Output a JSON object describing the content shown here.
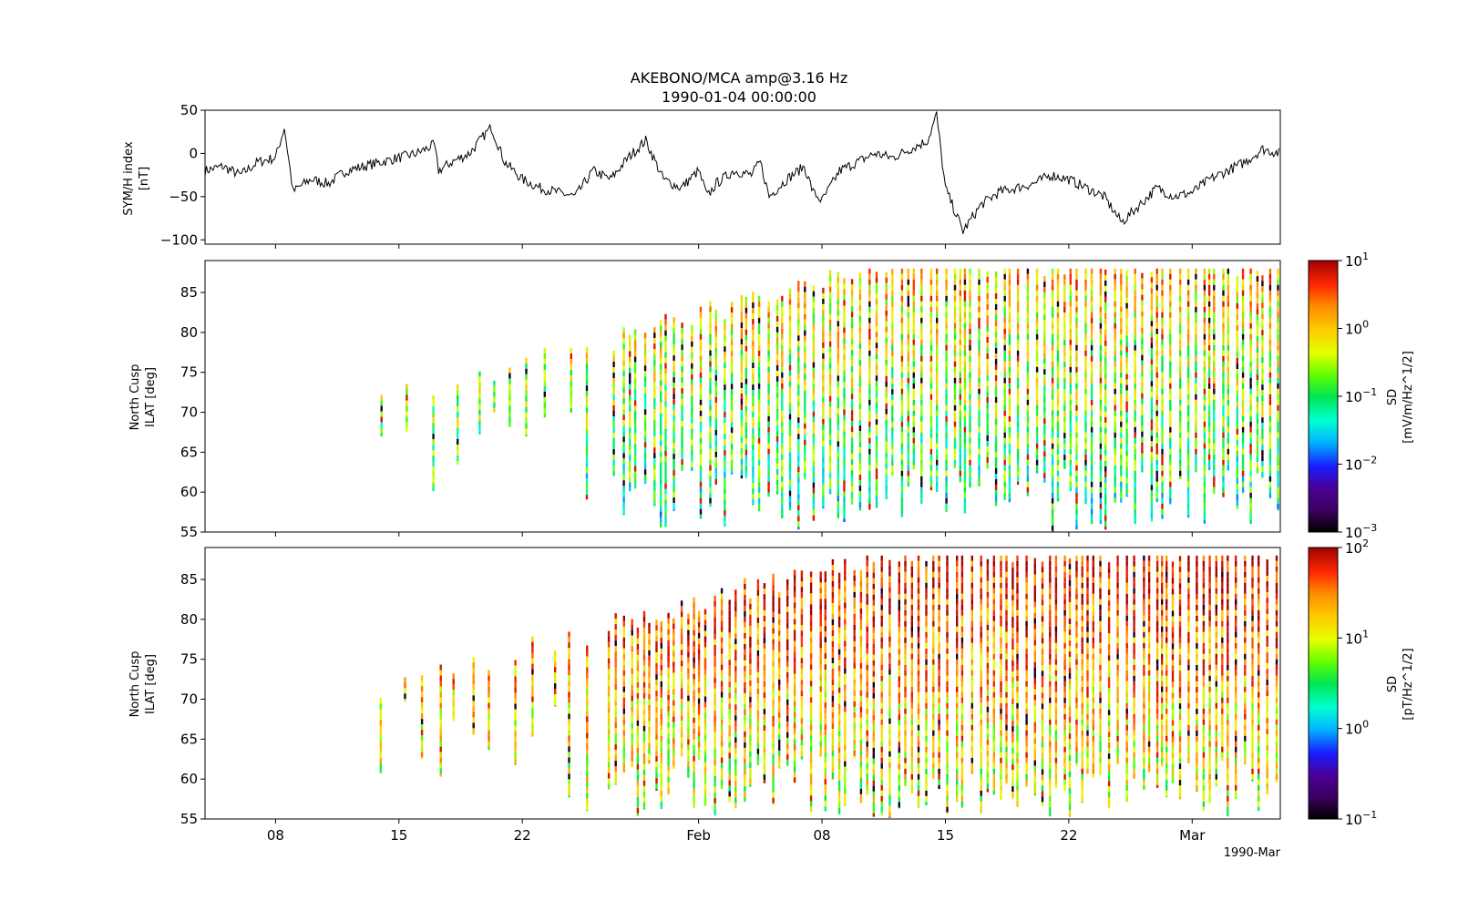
{
  "title": {
    "line1": "AKEBONO/MCA amp@3.16 Hz",
    "line2": "1990-01-04 00:00:00"
  },
  "x_axis": {
    "range": [
      "1990-01-04",
      "1990-03-06"
    ],
    "ticks": [
      {
        "date": "1990-01-08",
        "label": "08"
      },
      {
        "date": "1990-01-15",
        "label": "15"
      },
      {
        "date": "1990-01-22",
        "label": "22"
      },
      {
        "date": "1990-02-01",
        "label": "Feb"
      },
      {
        "date": "1990-02-08",
        "label": "08"
      },
      {
        "date": "1990-02-15",
        "label": "15"
      },
      {
        "date": "1990-02-22",
        "label": "22"
      },
      {
        "date": "1990-03-01",
        "label": "Mar"
      }
    ],
    "offset_label": "1990-Mar"
  },
  "chart_data": [
    {
      "type": "line",
      "name": "symh",
      "ylabel_line1": "SYM/H index",
      "ylabel_line2": "[nT]",
      "ylim": [
        -105,
        50
      ],
      "yticks": [
        50,
        0,
        -50,
        -100
      ],
      "ytick_labels": [
        "50",
        "0",
        "−50",
        "−100"
      ],
      "color": "#000000",
      "x": [
        "1990-01-04",
        "1990-01-05",
        "1990-01-06",
        "1990-01-07",
        "1990-01-08",
        "1990-01-08T12:00",
        "1990-01-09",
        "1990-01-09T06:00",
        "1990-01-10",
        "1990-01-11",
        "1990-01-12",
        "1990-01-13",
        "1990-01-14",
        "1990-01-15",
        "1990-01-16",
        "1990-01-17",
        "1990-01-17T06:00",
        "1990-01-18",
        "1990-01-19",
        "1990-01-20",
        "1990-01-20T06:00",
        "1990-01-21",
        "1990-01-22",
        "1990-01-23",
        "1990-01-24",
        "1990-01-25",
        "1990-01-26",
        "1990-01-27",
        "1990-01-28",
        "1990-01-29",
        "1990-01-30",
        "1990-01-31",
        "1990-02-01",
        "1990-02-01T12:00",
        "1990-02-02",
        "1990-02-03",
        "1990-02-04",
        "1990-02-04T12:00",
        "1990-02-05",
        "1990-02-06",
        "1990-02-07",
        "1990-02-07T12:00",
        "1990-02-08",
        "1990-02-09",
        "1990-02-10",
        "1990-02-11",
        "1990-02-12",
        "1990-02-13",
        "1990-02-14",
        "1990-02-14T12:00",
        "1990-02-15",
        "1990-02-16",
        "1990-02-17",
        "1990-02-18",
        "1990-02-19",
        "1990-02-20",
        "1990-02-21",
        "1990-02-22",
        "1990-02-23",
        "1990-02-24",
        "1990-02-25",
        "1990-02-26",
        "1990-02-27",
        "1990-02-28",
        "1990-03-01",
        "1990-03-02",
        "1990-03-03",
        "1990-03-04",
        "1990-03-05",
        "1990-03-06"
      ],
      "values": [
        -20,
        -15,
        -25,
        -10,
        -5,
        30,
        -45,
        -40,
        -30,
        -35,
        -20,
        -15,
        -10,
        -5,
        0,
        10,
        -20,
        -10,
        0,
        25,
        30,
        -10,
        -30,
        -40,
        -45,
        -50,
        -20,
        -30,
        -5,
        15,
        -30,
        -40,
        -20,
        -50,
        -35,
        -20,
        -25,
        -10,
        -50,
        -30,
        -15,
        -45,
        -55,
        -20,
        -10,
        0,
        -5,
        5,
        15,
        45,
        -40,
        -90,
        -60,
        -45,
        -40,
        -35,
        -25,
        -30,
        -40,
        -50,
        -80,
        -60,
        -40,
        -50,
        -45,
        -30,
        -20,
        -10,
        5,
        0
      ]
    },
    {
      "type": "heatmap",
      "name": "efield",
      "ylabel_line1": "North Cusp",
      "ylabel_line2": "ILAT [deg]",
      "ylim": [
        55,
        89
      ],
      "yticks": [
        85,
        80,
        75,
        70,
        65,
        60,
        55
      ],
      "ytick_labels": [
        "85",
        "80",
        "75",
        "70",
        "65",
        "60",
        "55"
      ],
      "colorbar": {
        "label_line1": "SD",
        "label_line2": "[mV/m/Hz^1/2]",
        "scale": "log",
        "range": [
          0.001,
          10
        ],
        "tick_bases": [
          "10",
          "10",
          "10",
          "10",
          "10"
        ],
        "tick_exps": [
          "1",
          "0",
          "−1",
          "−2",
          "−3"
        ],
        "tick_values": [
          10,
          1,
          0.1,
          0.01,
          0.001
        ]
      }
    },
    {
      "type": "heatmap",
      "name": "bfield",
      "ylabel_line1": "North Cusp",
      "ylabel_line2": "ILAT [deg]",
      "ylim": [
        55,
        89
      ],
      "yticks": [
        85,
        80,
        75,
        70,
        65,
        60,
        55
      ],
      "ytick_labels": [
        "85",
        "80",
        "75",
        "70",
        "65",
        "60",
        "55"
      ],
      "colorbar": {
        "label_line1": "SD",
        "label_line2": "[pT/Hz^1/2]",
        "scale": "log",
        "range": [
          0.1,
          100
        ],
        "tick_bases": [
          "10",
          "10",
          "10",
          "10"
        ],
        "tick_exps": [
          "2",
          "1",
          "0",
          "−1"
        ],
        "tick_values": [
          100,
          10,
          1,
          0.1
        ]
      }
    }
  ]
}
